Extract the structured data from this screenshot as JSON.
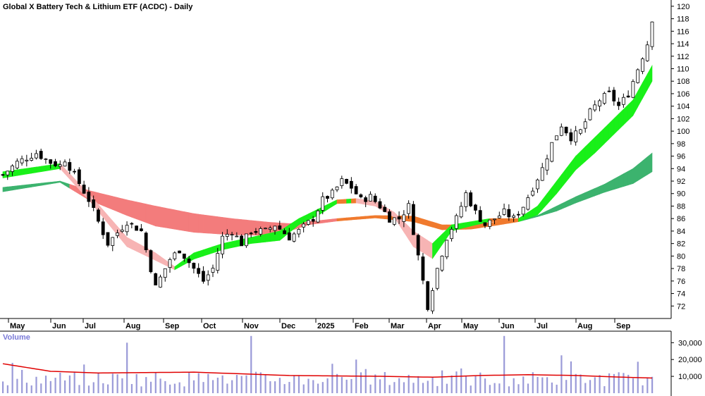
{
  "chart_data": {
    "type": "candlestick",
    "title": "Global X Battery Tech & Lithium ETF (ACDC) - Daily",
    "price_axis": {
      "ticks": [
        72,
        74,
        76,
        78,
        80,
        82,
        84,
        86,
        88,
        90,
        92,
        94,
        96,
        98,
        100,
        102,
        104,
        106,
        108,
        110,
        112,
        114,
        116,
        118,
        120
      ],
      "range": [
        70,
        121
      ]
    },
    "volume_label": "Volume",
    "volume_axis": {
      "ticks": [
        10000,
        20000,
        30000
      ],
      "tick_labels": [
        "10,000",
        "20,000",
        "30,000"
      ],
      "range": [
        0,
        36000
      ]
    },
    "months": [
      "May",
      "Jun",
      "Jul",
      "Aug",
      "Sep",
      "Oct",
      "Nov",
      "Dec",
      "2025",
      "Feb",
      "Mar",
      "Apr",
      "May",
      "Jun",
      "Jul",
      "Aug",
      "Sep"
    ],
    "price_path": [
      [
        0,
        93
      ],
      [
        3,
        95
      ],
      [
        7,
        96.5
      ],
      [
        10,
        95
      ],
      [
        12,
        94.5
      ],
      [
        13,
        95.5
      ],
      [
        15,
        93
      ],
      [
        18,
        89
      ],
      [
        22,
        82
      ],
      [
        26,
        85.5
      ],
      [
        29,
        84
      ],
      [
        32,
        75
      ],
      [
        35,
        79.5
      ],
      [
        37,
        81
      ],
      [
        39,
        79
      ],
      [
        42,
        76
      ],
      [
        44,
        78
      ],
      [
        46,
        83
      ],
      [
        48,
        84
      ],
      [
        50,
        82
      ],
      [
        52,
        84
      ],
      [
        55,
        84
      ],
      [
        57,
        85
      ],
      [
        60,
        83
      ],
      [
        62,
        84
      ],
      [
        65,
        86
      ],
      [
        67,
        89
      ],
      [
        69,
        90
      ],
      [
        71,
        92
      ],
      [
        73,
        91
      ],
      [
        75,
        89
      ],
      [
        77,
        89.5
      ],
      [
        79,
        88
      ],
      [
        81,
        86
      ],
      [
        83,
        86
      ],
      [
        85,
        88
      ],
      [
        87,
        80
      ],
      [
        89,
        72
      ],
      [
        91,
        78
      ],
      [
        93,
        83
      ],
      [
        95,
        86
      ],
      [
        97,
        90
      ],
      [
        99,
        87
      ],
      [
        101,
        85
      ],
      [
        103,
        86
      ],
      [
        105,
        87
      ],
      [
        107,
        86
      ],
      [
        109,
        88
      ],
      [
        111,
        91
      ],
      [
        113,
        94
      ],
      [
        115,
        98
      ],
      [
        117,
        101
      ],
      [
        119,
        99
      ],
      [
        121,
        100
      ],
      [
        123,
        103
      ],
      [
        125,
        105
      ],
      [
        127,
        106
      ],
      [
        129,
        104
      ],
      [
        131,
        106
      ],
      [
        133,
        110
      ],
      [
        135,
        114
      ],
      [
        136,
        118
      ]
    ],
    "moving_average_ribbons": {
      "short_top": [
        [
          0,
          93.5
        ],
        [
          12,
          94.8
        ],
        [
          18,
          90
        ],
        [
          26,
          83
        ],
        [
          32,
          80.5
        ],
        [
          36,
          78.3
        ],
        [
          40,
          80.5
        ],
        [
          46,
          82
        ],
        [
          52,
          83
        ],
        [
          58,
          84
        ],
        [
          62,
          86
        ],
        [
          66,
          87.5
        ],
        [
          70,
          89
        ],
        [
          74,
          89.2
        ],
        [
          78,
          88.8
        ],
        [
          82,
          87
        ],
        [
          86,
          84
        ],
        [
          90,
          82
        ],
        [
          94,
          85
        ],
        [
          98,
          85.5
        ],
        [
          102,
          86
        ],
        [
          108,
          86
        ],
        [
          112,
          88
        ],
        [
          116,
          92
        ],
        [
          120,
          96
        ],
        [
          124,
          99
        ],
        [
          128,
          102
        ],
        [
          132,
          105
        ],
        [
          136,
          110.5
        ]
      ],
      "short_bottom": [
        [
          0,
          92.5
        ],
        [
          12,
          94
        ],
        [
          18,
          89
        ],
        [
          26,
          81.5
        ],
        [
          32,
          79.3
        ],
        [
          36,
          77.8
        ],
        [
          40,
          79.5
        ],
        [
          46,
          81
        ],
        [
          52,
          82
        ],
        [
          58,
          82.5
        ],
        [
          62,
          85
        ],
        [
          66,
          86.5
        ],
        [
          70,
          88.4
        ],
        [
          74,
          88.5
        ],
        [
          78,
          88
        ],
        [
          82,
          86.2
        ],
        [
          86,
          81.5
        ],
        [
          90,
          79.6
        ],
        [
          94,
          84
        ],
        [
          98,
          84.8
        ],
        [
          102,
          85.5
        ],
        [
          108,
          85.5
        ],
        [
          112,
          86.6
        ],
        [
          116,
          90
        ],
        [
          120,
          93.8
        ],
        [
          124,
          96.5
        ],
        [
          128,
          99.5
        ],
        [
          132,
          102.5
        ],
        [
          136,
          108
        ]
      ],
      "long_top": [
        [
          0,
          91
        ],
        [
          12,
          92
        ],
        [
          18,
          90.5
        ],
        [
          26,
          89
        ],
        [
          32,
          88
        ],
        [
          40,
          86.8
        ],
        [
          48,
          86
        ],
        [
          56,
          85.4
        ],
        [
          60,
          85.2
        ],
        [
          64,
          85.5
        ],
        [
          70,
          86
        ],
        [
          78,
          86.5
        ],
        [
          86,
          86.4
        ],
        [
          92,
          85
        ],
        [
          98,
          85
        ],
        [
          104,
          85.5
        ],
        [
          108,
          85.8
        ],
        [
          112,
          86.5
        ],
        [
          116,
          88
        ],
        [
          120,
          89.5
        ],
        [
          126,
          91.5
        ],
        [
          132,
          94
        ],
        [
          136,
          96.5
        ]
      ],
      "long_bottom": [
        [
          0,
          90.3
        ],
        [
          12,
          91.8
        ],
        [
          18,
          89
        ],
        [
          26,
          86.5
        ],
        [
          32,
          84.8
        ],
        [
          40,
          83.8
        ],
        [
          48,
          83.4
        ],
        [
          56,
          83.3
        ],
        [
          60,
          84
        ],
        [
          64,
          85
        ],
        [
          70,
          85.6
        ],
        [
          78,
          86.1
        ],
        [
          86,
          85.5
        ],
        [
          92,
          84.2
        ],
        [
          98,
          84.3
        ],
        [
          104,
          85
        ],
        [
          108,
          85.5
        ],
        [
          112,
          86.3
        ],
        [
          116,
          87.2
        ],
        [
          120,
          88.5
        ],
        [
          126,
          90.2
        ],
        [
          132,
          91.6
        ],
        [
          136,
          93.5
        ]
      ]
    },
    "volume_avg_path": [
      [
        0,
        17500
      ],
      [
        10,
        13000
      ],
      [
        20,
        12000
      ],
      [
        40,
        12500
      ],
      [
        60,
        10500
      ],
      [
        80,
        10000
      ],
      [
        90,
        9500
      ],
      [
        100,
        10500
      ],
      [
        110,
        11000
      ],
      [
        120,
        10500
      ],
      [
        130,
        9500
      ],
      [
        136,
        9000
      ]
    ],
    "colors": {
      "up_ribbon_short": "#19f019",
      "down_ribbon_short": "#f7b4b4",
      "up_ribbon_long": "#3cb36e",
      "down_ribbon_long": "#f37c7c",
      "neutral_ribbon": "#f07a2e",
      "volume_bar": "#9a9ad8",
      "volume_avg": "#e00000"
    }
  }
}
